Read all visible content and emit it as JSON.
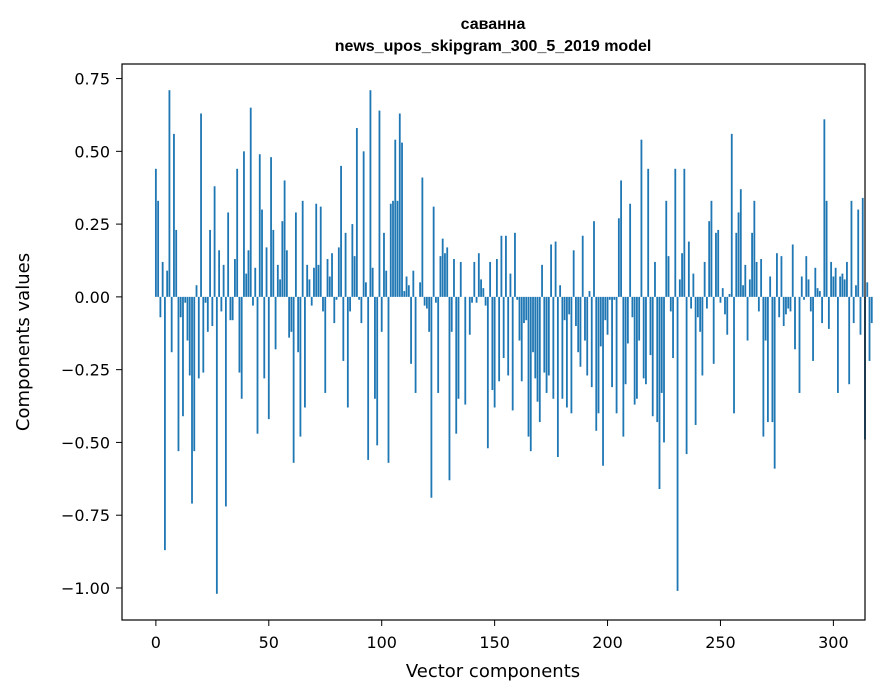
{
  "chart_data": {
    "type": "bar",
    "title": "саванна",
    "subtitle": "news_upos_skipgram_300_5_2019 model",
    "xlabel": "Vector components",
    "ylabel": "Components values",
    "xlim": [
      -15,
      314
    ],
    "ylim": [
      -1.11,
      0.8
    ],
    "xticks": [
      0,
      50,
      100,
      150,
      200,
      250,
      300
    ],
    "yticks": [
      -1.0,
      -0.75,
      -0.5,
      -0.25,
      0.0,
      0.25,
      0.5,
      0.75
    ],
    "ytick_labels": [
      "−1.00",
      "−0.75",
      "−0.50",
      "−0.25",
      "0.00",
      "0.25",
      "0.50",
      "0.75"
    ],
    "xtick_labels": [
      "0",
      "50",
      "100",
      "150",
      "200",
      "250",
      "300"
    ],
    "bar_color": "#1f77b4",
    "values": [
      0.44,
      0.33,
      -0.07,
      0.12,
      -0.87,
      0.09,
      0.71,
      -0.19,
      0.56,
      0.23,
      -0.53,
      -0.07,
      -0.41,
      -0.02,
      -0.15,
      -0.27,
      -0.71,
      -0.53,
      0.04,
      -0.28,
      0.63,
      -0.26,
      -0.02,
      -0.12,
      0.23,
      -0.1,
      0.38,
      -1.02,
      0.16,
      -0.05,
      0.11,
      -0.72,
      0.29,
      -0.08,
      -0.08,
      0.13,
      0.44,
      -0.26,
      -0.35,
      0.5,
      0.08,
      0.16,
      0.65,
      -0.03,
      0.1,
      -0.47,
      0.49,
      0.3,
      -0.28,
      0.17,
      -0.42,
      0.48,
      0.23,
      -0.18,
      0.11,
      0.06,
      0.26,
      0.4,
      0.16,
      -0.14,
      -0.12,
      -0.57,
      0.29,
      -0.19,
      -0.48,
      0.33,
      -0.38,
      0.11,
      0.06,
      -0.03,
      0.1,
      0.32,
      0.11,
      0.31,
      -0.05,
      -0.33,
      0.13,
      0.07,
      0.15,
      -0.09,
      -0.01,
      0.17,
      0.45,
      -0.22,
      0.22,
      -0.38,
      -0.05,
      0.25,
      0.14,
      0.58,
      -0.01,
      -0.09,
      0.5,
      0.05,
      -0.56,
      0.71,
      0.1,
      -0.35,
      -0.51,
      0.64,
      -0.12,
      0.22,
      0.09,
      -0.57,
      0.32,
      0.33,
      0.54,
      0.33,
      0.63,
      0.53,
      0.02,
      0.07,
      0.04,
      -0.23,
      0.09,
      -0.33,
      0.0,
      0.05,
      0.41,
      -0.03,
      -0.04,
      -0.12,
      -0.69,
      0.31,
      -0.02,
      -0.33,
      0.14,
      0.2,
      0.15,
      0.17,
      -0.63,
      -0.12,
      0.13,
      -0.47,
      -0.35,
      0.12,
      0.0,
      -0.37,
      0.0,
      -0.13,
      -0.02,
      0.12,
      -0.02,
      0.15,
      0.06,
      0.03,
      -0.03,
      -0.52,
      0.12,
      -0.32,
      -0.38,
      0.13,
      -0.29,
      0.21,
      -0.21,
      0.21,
      -0.27,
      0.08,
      -0.39,
      0.22,
      -0.01,
      -0.15,
      -0.29,
      -0.09,
      -0.08,
      -0.48,
      -0.53,
      -0.19,
      -0.28,
      -0.36,
      -0.43,
      0.11,
      -0.26,
      -0.33,
      -0.27,
      0.18,
      -0.35,
      0.19,
      -0.55,
      0.04,
      -0.35,
      -0.08,
      -0.38,
      -0.06,
      -0.4,
      0.16,
      -0.1,
      -0.19,
      -0.24,
      0.21,
      -0.15,
      -0.27,
      0.02,
      -0.31,
      0.26,
      -0.46,
      -0.4,
      -0.17,
      -0.58,
      -0.08,
      -0.13,
      -0.01,
      -0.31,
      -0.01,
      -0.4,
      0.27,
      0.4,
      -0.48,
      -0.3,
      -0.16,
      0.32,
      -0.07,
      -0.37,
      -0.35,
      -0.15,
      0.54,
      -0.28,
      -0.3,
      0.44,
      -0.2,
      -0.41,
      0.12,
      -0.43,
      -0.66,
      -0.33,
      -0.5,
      0.33,
      0.14,
      -0.05,
      -0.21,
      0.44,
      -1.01,
      0.06,
      0.15,
      0.44,
      -0.54,
      0.19,
      -0.04,
      0.08,
      -0.44,
      -0.07,
      -0.12,
      -0.27,
      0.12,
      -0.04,
      0.26,
      0.33,
      -0.23,
      0.22,
      0.23,
      -0.02,
      0.03,
      -0.06,
      -0.13,
      0.01,
      0.56,
      -0.4,
      0.22,
      0.29,
      0.37,
      0.04,
      0.11,
      -0.15,
      0.06,
      0.22,
      0.33,
      0.12,
      -0.05,
      0.13,
      -0.48,
      -0.15,
      -0.43,
      0.07,
      -0.43,
      -0.59,
      0.15,
      -0.07,
      0.14,
      -0.1,
      -0.06,
      -0.04,
      -0.05,
      0.18,
      -0.18,
      0.0,
      -0.33,
      0.07,
      -0.01,
      0.14,
      0.06,
      -0.05,
      -0.22,
      0.1,
      0.03,
      0.02,
      -0.09,
      0.61,
      0.33,
      -0.11,
      0.12,
      0.07,
      0.1,
      -0.33,
      0.07,
      0.08,
      0.06,
      0.12,
      -0.3,
      0.33,
      -0.09,
      0.04,
      0.3,
      -0.13,
      0.34,
      -0.49,
      0.05,
      -0.22,
      -0.09
    ]
  }
}
